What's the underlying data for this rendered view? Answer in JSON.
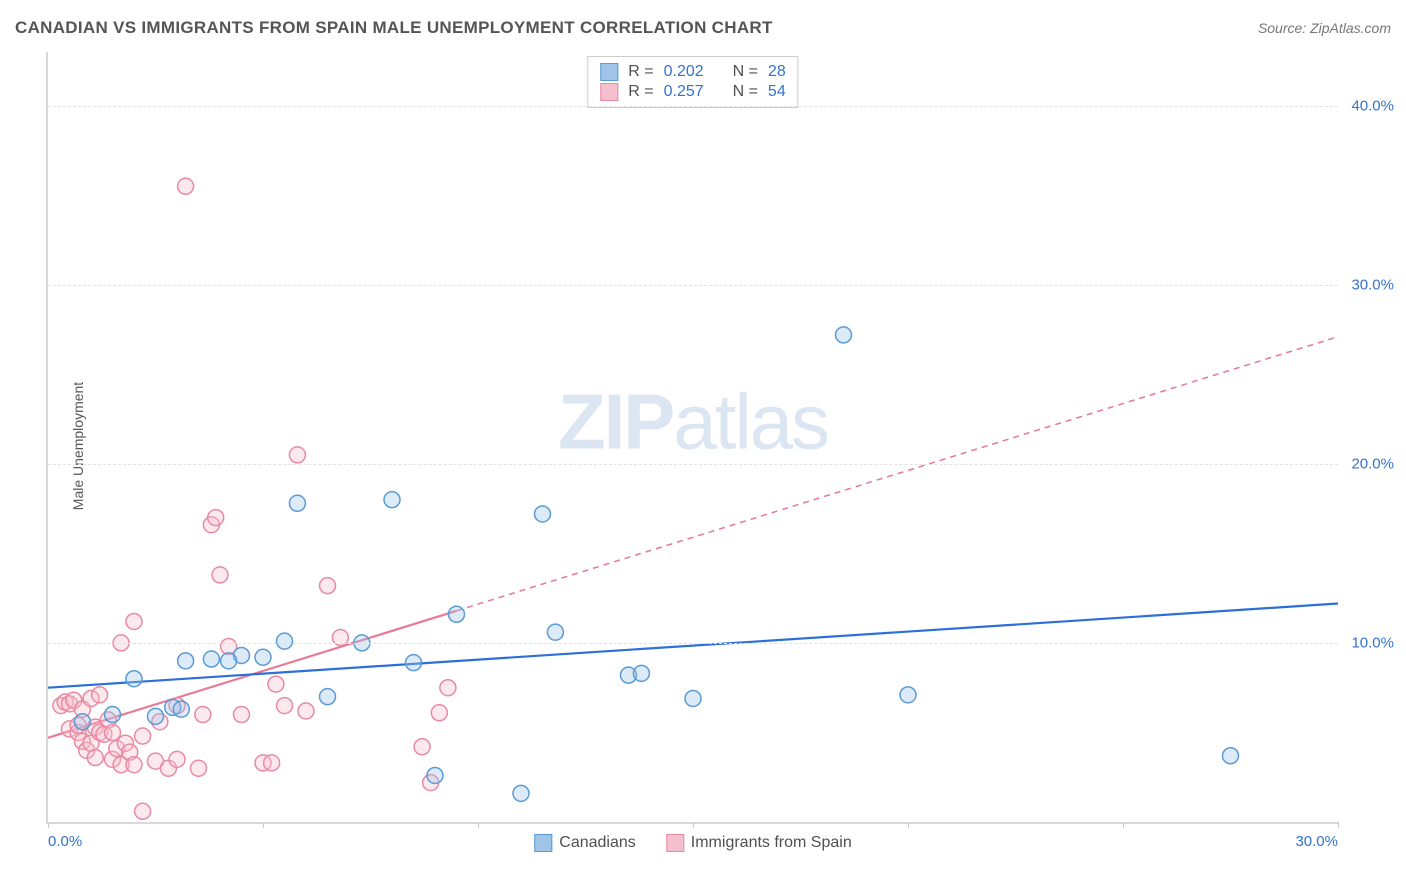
{
  "title": "CANADIAN VS IMMIGRANTS FROM SPAIN MALE UNEMPLOYMENT CORRELATION CHART",
  "source": "Source: ZipAtlas.com",
  "y_axis_label": "Male Unemployment",
  "watermark_zip": "ZIP",
  "watermark_atlas": "atlas",
  "chart": {
    "type": "scatter",
    "background_color": "#ffffff",
    "grid_color": "#e2e2e2",
    "axis_color": "#d8d8d8",
    "xlim": [
      0,
      30
    ],
    "ylim": [
      0,
      43
    ],
    "yticks": [
      10,
      20,
      30,
      40
    ],
    "ytick_labels": [
      "10.0%",
      "20.0%",
      "30.0%",
      "40.0%"
    ],
    "xticks": [
      0,
      5,
      10,
      15,
      20,
      25,
      30
    ],
    "xtick_labels_shown": {
      "0": "0.0%",
      "30": "30.0%"
    },
    "marker_radius": 8,
    "marker_stroke_width": 1.5,
    "marker_fill_opacity": 0.35,
    "trend_line_width": 2.2,
    "trend_dash": "6,5"
  },
  "series": {
    "canadians": {
      "label": "Canadians",
      "fill": "#9fc4e8",
      "stroke": "#5a9bd5",
      "line_color": "#2d6fd6",
      "R": "0.202",
      "N": "28",
      "trend": {
        "x1": 0,
        "y1": 7.5,
        "x2": 30,
        "y2": 12.2,
        "dash_from_x": 30
      },
      "points": [
        [
          0.8,
          5.6
        ],
        [
          1.5,
          6.0
        ],
        [
          2.0,
          8.0
        ],
        [
          2.5,
          5.9
        ],
        [
          3.2,
          9.0
        ],
        [
          3.8,
          9.1
        ],
        [
          4.5,
          9.3
        ],
        [
          5.0,
          9.2
        ],
        [
          5.5,
          10.1
        ],
        [
          5.8,
          17.8
        ],
        [
          6.5,
          7.0
        ],
        [
          7.3,
          10.0
        ],
        [
          8.0,
          18.0
        ],
        [
          8.5,
          8.9
        ],
        [
          9.0,
          2.6
        ],
        [
          9.5,
          11.6
        ],
        [
          11.5,
          17.2
        ],
        [
          11.0,
          1.6
        ],
        [
          11.8,
          10.6
        ],
        [
          13.5,
          8.2
        ],
        [
          13.8,
          8.3
        ],
        [
          15.0,
          6.9
        ],
        [
          18.5,
          27.2
        ],
        [
          20.0,
          7.1
        ],
        [
          27.5,
          3.7
        ],
        [
          4.2,
          9.0
        ],
        [
          2.9,
          6.4
        ],
        [
          3.1,
          6.3
        ]
      ]
    },
    "spain": {
      "label": "Immigrants from Spain",
      "fill": "#f6bfcd",
      "stroke": "#e98aa3",
      "line_color": "#e77a96",
      "R": "0.257",
      "N": "54",
      "trend": {
        "x1": 0,
        "y1": 4.7,
        "x2": 30,
        "y2": 27.1,
        "dash_from_x": 9.5
      },
      "points": [
        [
          0.3,
          6.5
        ],
        [
          0.4,
          6.7
        ],
        [
          0.5,
          6.6
        ],
        [
          0.5,
          5.2
        ],
        [
          0.6,
          6.8
        ],
        [
          0.7,
          5.0
        ],
        [
          0.7,
          5.4
        ],
        [
          0.8,
          4.5
        ],
        [
          0.8,
          6.3
        ],
        [
          0.9,
          4.0
        ],
        [
          1.0,
          4.4
        ],
        [
          1.0,
          6.9
        ],
        [
          1.1,
          3.6
        ],
        [
          1.1,
          5.3
        ],
        [
          1.2,
          5.0
        ],
        [
          1.2,
          7.1
        ],
        [
          1.3,
          4.9
        ],
        [
          1.4,
          5.7
        ],
        [
          1.5,
          3.5
        ],
        [
          1.5,
          5.0
        ],
        [
          1.6,
          4.1
        ],
        [
          1.7,
          3.2
        ],
        [
          1.7,
          10.0
        ],
        [
          1.8,
          4.4
        ],
        [
          1.9,
          3.9
        ],
        [
          2.0,
          3.2
        ],
        [
          2.0,
          11.2
        ],
        [
          2.2,
          4.8
        ],
        [
          2.2,
          0.6
        ],
        [
          2.5,
          3.4
        ],
        [
          2.6,
          5.6
        ],
        [
          2.8,
          3.0
        ],
        [
          3.0,
          3.5
        ],
        [
          3.0,
          6.5
        ],
        [
          3.2,
          35.5
        ],
        [
          3.5,
          3.0
        ],
        [
          3.6,
          6.0
        ],
        [
          3.8,
          16.6
        ],
        [
          3.9,
          17.0
        ],
        [
          4.0,
          13.8
        ],
        [
          4.2,
          9.8
        ],
        [
          4.5,
          6.0
        ],
        [
          5.0,
          3.3
        ],
        [
          5.2,
          3.3
        ],
        [
          5.3,
          7.7
        ],
        [
          5.5,
          6.5
        ],
        [
          5.8,
          20.5
        ],
        [
          6.0,
          6.2
        ],
        [
          6.5,
          13.2
        ],
        [
          6.8,
          10.3
        ],
        [
          8.7,
          4.2
        ],
        [
          8.9,
          2.2
        ],
        [
          9.1,
          6.1
        ],
        [
          9.3,
          7.5
        ]
      ]
    }
  },
  "legend_top": {
    "R_label": "R =",
    "N_label": "N ="
  }
}
